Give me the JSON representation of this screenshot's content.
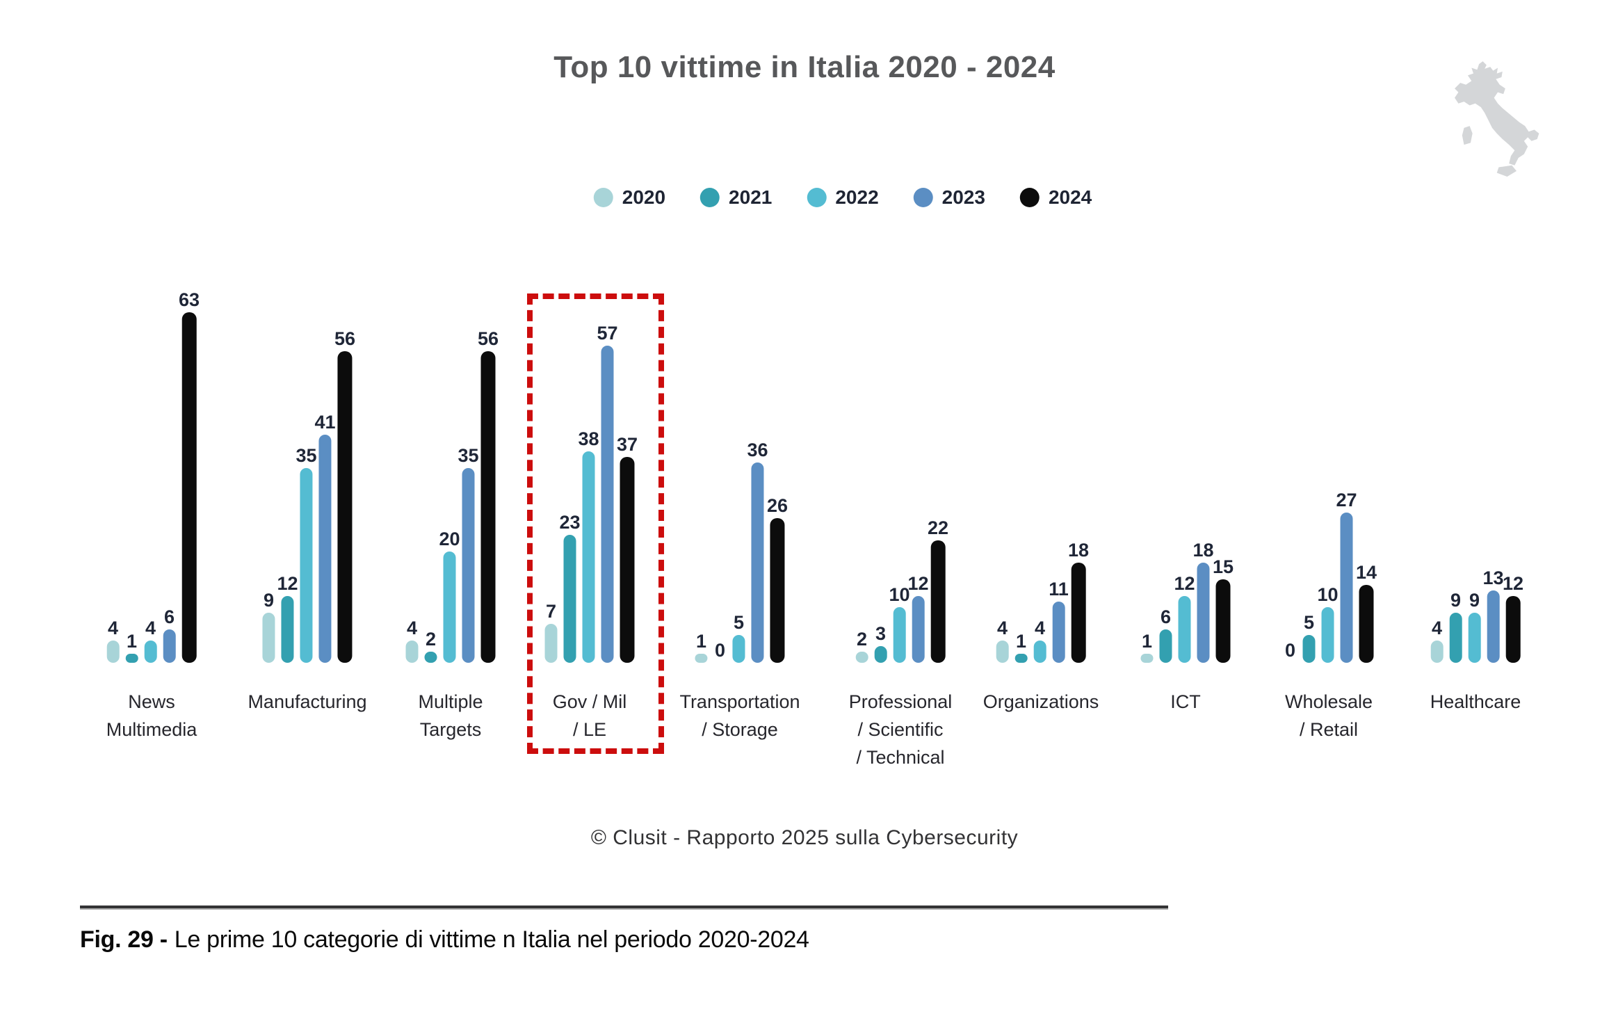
{
  "title": "Top 10 vittime in Italia 2020 - 2024",
  "legend": {
    "items": [
      {
        "label": "2020",
        "color": "#a8d4d8"
      },
      {
        "label": "2021",
        "color": "#33a0b0"
      },
      {
        "label": "2022",
        "color": "#54bcd2"
      },
      {
        "label": "2023",
        "color": "#5b8ec3"
      },
      {
        "label": "2024",
        "color": "#0c0c0c"
      }
    ]
  },
  "chart_data": {
    "type": "bar",
    "title": "Top 10 vittime in Italia 2020 - 2024",
    "categories": [
      "News Multimedia",
      "Manufacturing",
      "Multiple Targets",
      "Gov / Mil / LE",
      "Transportation / Storage",
      "Professional / Scientific / Technical",
      "Organizations",
      "ICT",
      "Wholesale / Retail",
      "Healthcare"
    ],
    "category_label_lines": [
      [
        "News",
        "Multimedia"
      ],
      [
        "Manufacturing"
      ],
      [
        "Multiple",
        "Targets"
      ],
      [
        "Gov / Mil",
        "/ LE"
      ],
      [
        "Transportation",
        "/ Storage"
      ],
      [
        "Professional",
        "/ Scientific",
        "/ Technical"
      ],
      [
        "Organizations"
      ],
      [
        "ICT"
      ],
      [
        "Wholesale",
        "/ Retail"
      ],
      [
        "Healthcare"
      ]
    ],
    "series": [
      {
        "name": "2020",
        "color": "#a8d4d8",
        "values": [
          4,
          9,
          4,
          7,
          1,
          2,
          4,
          1,
          0,
          4
        ]
      },
      {
        "name": "2021",
        "color": "#33a0b0",
        "values": [
          1,
          12,
          2,
          23,
          0,
          3,
          1,
          6,
          5,
          9
        ]
      },
      {
        "name": "2022",
        "color": "#54bcd2",
        "values": [
          4,
          35,
          20,
          38,
          5,
          10,
          4,
          12,
          10,
          9
        ]
      },
      {
        "name": "2023",
        "color": "#5b8ec3",
        "values": [
          6,
          41,
          35,
          57,
          36,
          12,
          11,
          18,
          27,
          13
        ]
      },
      {
        "name": "2024",
        "color": "#0c0c0c",
        "values": [
          63,
          56,
          56,
          37,
          26,
          22,
          18,
          15,
          14,
          12
        ]
      }
    ],
    "ylim": [
      0,
      63
    ],
    "grid": false,
    "legend_position": "top-center",
    "highlight": {
      "category": "Gov / Mil / LE",
      "style": "red dashed box",
      "color": "#cc0d0d"
    }
  },
  "footer": {
    "credit": "© Clusit - Rapporto 2025 sulla Cybersecurity"
  },
  "caption": {
    "prefix": "Fig. 29 -",
    "text": "Le prime 10 categorie di vittime n Italia nel periodo 2020-2024"
  },
  "decor": {
    "italy_map_color": "#d4d6d8"
  }
}
